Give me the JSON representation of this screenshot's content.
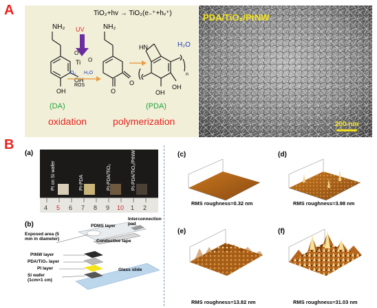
{
  "panel_a": {
    "letter": "A",
    "reaction": "TiO₂+hv → TiO₂(e₋⁺+hᵥ⁺)",
    "uv": "UV",
    "nh2_1": "NH₂",
    "nh2_2": "NH₂",
    "ti": "Ti",
    "o2": "O₂",
    "h2o_small": "H₂O",
    "ros": "ROS",
    "h2o": "H₂O",
    "hn": "HN",
    "oh_1": "OH",
    "oh_2": "OH",
    "oh_3": "OH",
    "oh_4": "OH",
    "n_sub": "n",
    "dopamine": "(DA)",
    "pda": "(PDA)",
    "oxidation": "oxidation",
    "polymerization": "polymerization",
    "sem_title": "PDA/TiO₂/PtNW",
    "scale_bar": "200 nm"
  },
  "panel_b": {
    "letter": "B",
    "a_label": "(a)",
    "b_label": "(b)",
    "c_label": "(c)",
    "d_label": "(d)",
    "e_label": "(e)",
    "f_label": "(f)",
    "samples": [
      "PI on Si wafer",
      "PI-PDA",
      "PI-PDA/TiO₂",
      "PI-PDA/TiO₂/PtNW"
    ],
    "ruler": [
      "4",
      "5",
      "6",
      "7",
      "8",
      "9",
      "10",
      "1",
      "2"
    ],
    "stack": {
      "pdms": "PDMS layer",
      "interconnection": "Interconnection pad",
      "exposed": "Exposed area (5 mm in diameter)",
      "conductive": "Conductive tape",
      "ptnw": "PtNW layer",
      "pda_tio2": "PDA/TiO₂ layer",
      "pi": "PI layer",
      "si": "Si wafer (1cm×1 cm)",
      "glass": "Glass slide"
    },
    "rms": {
      "c": "RMS roughness=0.32 nm",
      "d": "RMS roughness=3.98 nm",
      "e": "RMS roughness=13.82 nm",
      "f": "RMS roughness=31.03 nm"
    }
  },
  "colors": {
    "accent_red": "#e8231f",
    "green": "#1fa33a",
    "uv_purple": "#6a2ea0",
    "afm_brown": "#b5651d",
    "sem_yellow": "#f5e41b"
  }
}
